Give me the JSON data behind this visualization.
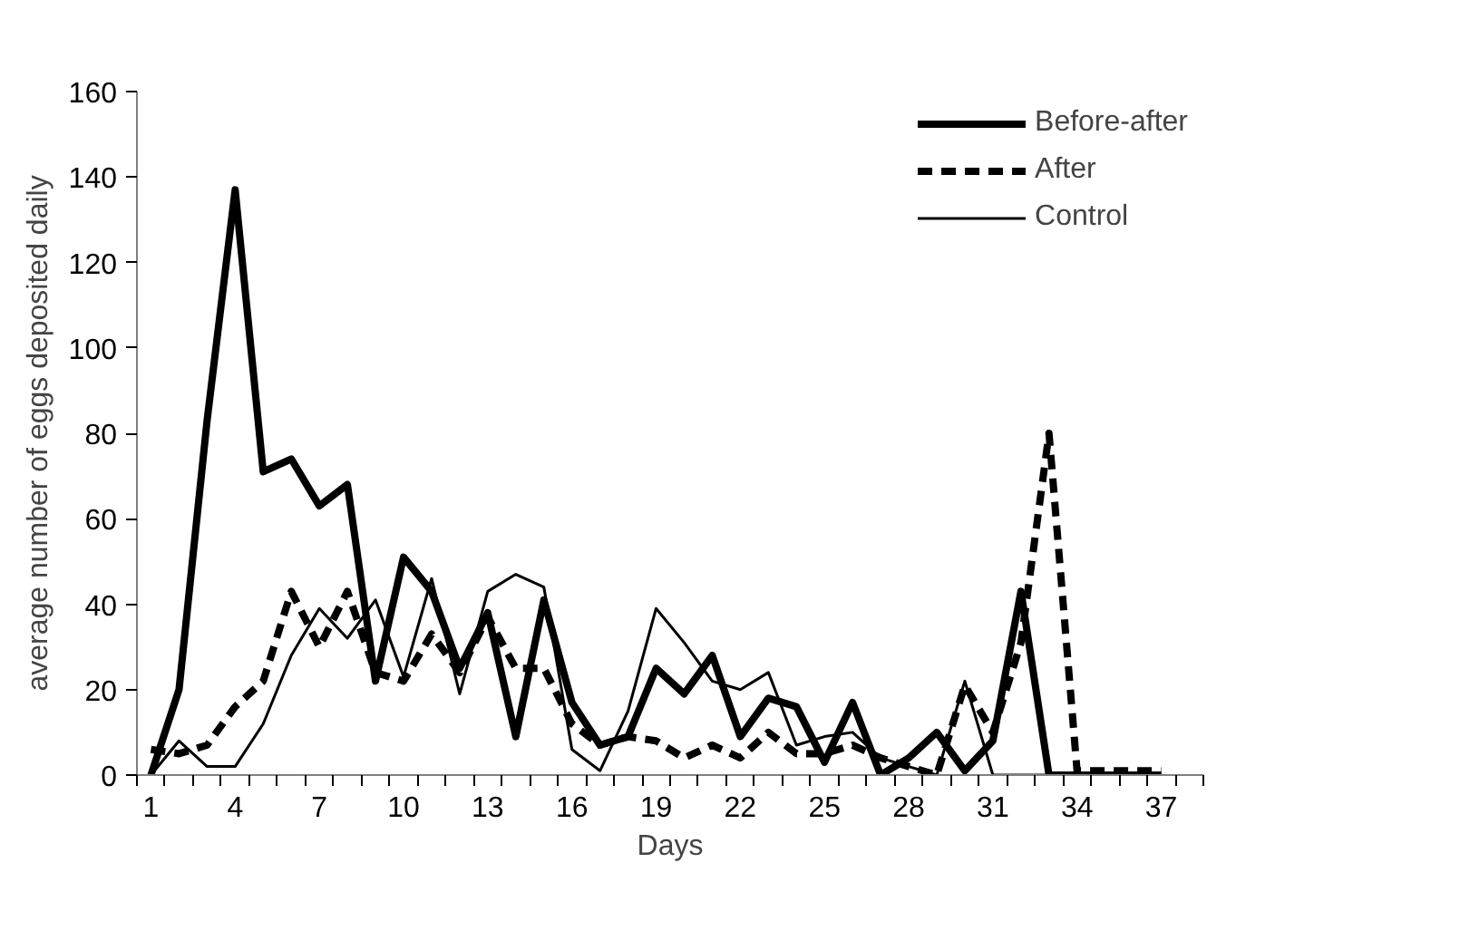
{
  "chart_data": {
    "type": "line",
    "xlabel": "Days",
    "ylabel": "average number of eggs deposited daily",
    "categories": [
      "1",
      null,
      null,
      "4",
      null,
      null,
      "7",
      null,
      null,
      "10",
      null,
      null,
      "13",
      null,
      null,
      "16",
      null,
      null,
      "19",
      null,
      null,
      "22",
      null,
      null,
      "25",
      null,
      null,
      "28",
      null,
      null,
      "31",
      null,
      null,
      "34",
      null,
      null,
      "37",
      null
    ],
    "series": [
      {
        "name": "Before-after",
        "color": "#000000",
        "line_style": "solid",
        "values": [
          0,
          20,
          83,
          137,
          71,
          74,
          63,
          68,
          22,
          51,
          43,
          25,
          38,
          9,
          41,
          17,
          7,
          9,
          25,
          19,
          28,
          9,
          18,
          16,
          3,
          17,
          0,
          4,
          10,
          1,
          8,
          43,
          0,
          0,
          0,
          0,
          0,
          null
        ]
      },
      {
        "name": "After",
        "color": "#000000",
        "line_style": "dashed",
        "values": [
          6,
          5,
          7,
          16,
          22,
          43,
          30,
          43,
          24,
          22,
          33,
          24,
          37,
          25,
          25,
          12,
          7,
          9,
          8,
          4,
          7,
          4,
          10,
          5,
          5,
          7,
          4,
          2,
          0,
          21,
          10,
          31,
          80,
          1,
          1,
          1,
          1,
          null
        ]
      },
      {
        "name": "Control",
        "color": "#000000",
        "line_style": "solid",
        "values": [
          0,
          8,
          2,
          2,
          12,
          28,
          39,
          32,
          41,
          23,
          46,
          19,
          43,
          47,
          44,
          6,
          1,
          15,
          39,
          31,
          22,
          20,
          24,
          7,
          9,
          10,
          4,
          2,
          0,
          22,
          0,
          0,
          0,
          0,
          0,
          0,
          0,
          null
        ]
      }
    ],
    "ylim": [
      0,
      160
    ],
    "yticks": [
      0,
      20,
      40,
      60,
      80,
      100,
      120,
      140,
      160
    ],
    "grid": false,
    "legend": "top right",
    "marker": "none"
  }
}
